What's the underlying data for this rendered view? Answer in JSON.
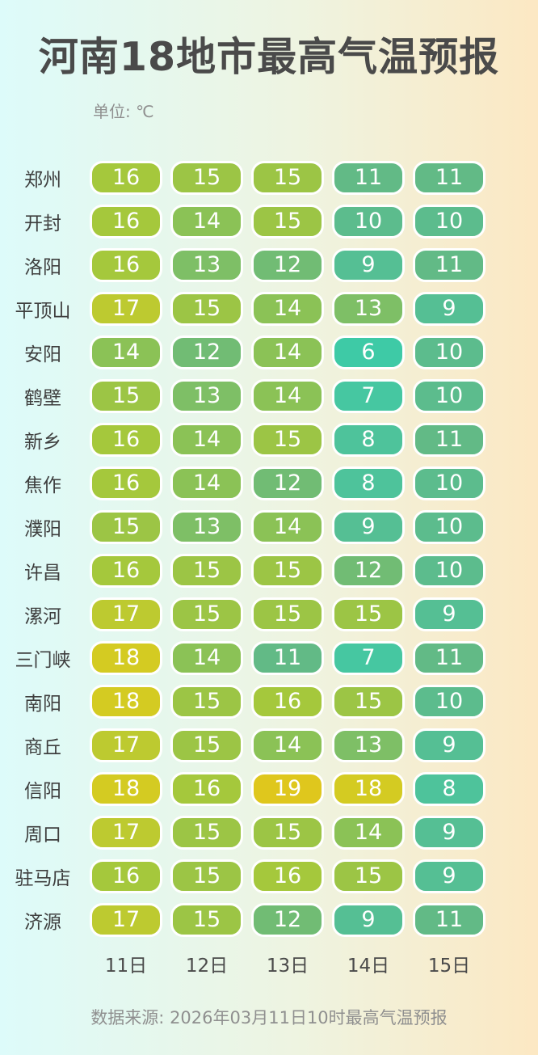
{
  "title": "河南18地市最高气温预报",
  "unit_label": "单位: ℃",
  "source": "数据来源: 2026年03月11日10时最高气温预报",
  "colors": {
    "bg_left": "#ddfbfa",
    "bg_mid": "#eef4e1",
    "bg_right": "#fce8c3",
    "text_dark": "#4a4a4a",
    "text_city": "#3e3e3e",
    "text_muted": "#8f8f8f",
    "cell_text": "#ffffff"
  },
  "chart_data": {
    "type": "heatmap",
    "title": "河南18地市最高气温预报",
    "unit": "℃",
    "columns": [
      "11日",
      "12日",
      "13日",
      "14日",
      "15日"
    ],
    "rows": [
      {
        "city": "郑州",
        "values": [
          16,
          15,
          15,
          11,
          11
        ]
      },
      {
        "city": "开封",
        "values": [
          16,
          14,
          15,
          10,
          10
        ]
      },
      {
        "city": "洛阳",
        "values": [
          16,
          13,
          12,
          9,
          11
        ]
      },
      {
        "city": "平顶山",
        "values": [
          17,
          15,
          14,
          13,
          9
        ]
      },
      {
        "city": "安阳",
        "values": [
          14,
          12,
          14,
          6,
          10
        ]
      },
      {
        "city": "鹤壁",
        "values": [
          15,
          13,
          14,
          7,
          10
        ]
      },
      {
        "city": "新乡",
        "values": [
          16,
          14,
          15,
          8,
          11
        ]
      },
      {
        "city": "焦作",
        "values": [
          16,
          14,
          12,
          8,
          10
        ]
      },
      {
        "city": "濮阳",
        "values": [
          15,
          13,
          14,
          9,
          10
        ]
      },
      {
        "city": "许昌",
        "values": [
          16,
          15,
          15,
          12,
          10
        ]
      },
      {
        "city": "漯河",
        "values": [
          17,
          15,
          15,
          15,
          9
        ]
      },
      {
        "city": "三门峡",
        "values": [
          18,
          14,
          11,
          7,
          11
        ]
      },
      {
        "city": "南阳",
        "values": [
          18,
          15,
          16,
          15,
          10
        ]
      },
      {
        "city": "商丘",
        "values": [
          17,
          15,
          14,
          13,
          9
        ]
      },
      {
        "city": "信阳",
        "values": [
          18,
          16,
          19,
          18,
          8
        ]
      },
      {
        "city": "周口",
        "values": [
          17,
          15,
          15,
          14,
          9
        ]
      },
      {
        "city": "驻马店",
        "values": [
          16,
          15,
          16,
          15,
          9
        ]
      },
      {
        "city": "济源",
        "values": [
          17,
          15,
          12,
          9,
          11
        ]
      }
    ],
    "color_scale": {
      "6": "#3ecaa6",
      "7": "#46c7a1",
      "8": "#4ec39b",
      "9": "#55bf94",
      "10": "#5cbc8d",
      "11": "#62ba86",
      "12": "#71bc74",
      "13": "#7ebf66",
      "14": "#8bc256",
      "15": "#9cc545",
      "16": "#a5c83c",
      "17": "#bdca30",
      "18": "#d4cb22",
      "19": "#dfc71d"
    },
    "legend_position": "none",
    "grid": false
  }
}
